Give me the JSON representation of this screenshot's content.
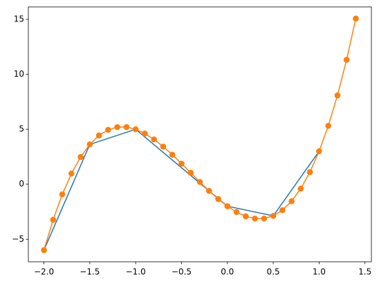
{
  "chart_data": {
    "type": "line",
    "series": [
      {
        "color": "#1f77b4",
        "markers": false,
        "x": [
          -2,
          -1.5,
          -1,
          0,
          0.5,
          1
        ],
        "values": [
          -6,
          3.625,
          5,
          -2,
          -2.875,
          3
        ]
      },
      {
        "color": "#ff7f0e",
        "markers": true,
        "x": [
          -2,
          -1.9,
          -1.8,
          -1.7,
          -1.6,
          -1.5,
          -1.4,
          -1.3,
          -1.2,
          -1.1,
          -1,
          -0.9,
          -0.8,
          -0.7,
          -0.6,
          -0.5,
          -0.4,
          -0.3,
          -0.2,
          -0.1,
          0,
          0.1,
          0.2,
          0.3,
          0.4,
          0.5,
          0.6,
          0.7,
          0.8,
          0.9,
          1,
          1.1,
          1.2,
          1.3,
          1.4
        ],
        "values": [
          -6,
          -3.235,
          -0.92,
          0.975,
          2.48,
          3.625,
          4.44,
          4.955,
          5.2,
          5.205,
          5,
          4.615,
          4.08,
          3.425,
          2.68,
          1.875,
          1.04,
          0.205,
          -0.6,
          -1.345,
          -2,
          -2.535,
          -2.92,
          -3.125,
          -3.12,
          -2.875,
          -2.36,
          -1.545,
          -0.4,
          1.105,
          3,
          5.315,
          8.08,
          11.325,
          15.08
        ]
      }
    ],
    "xlim": [
      -2.17,
      1.57
    ],
    "ylim": [
      -7.054,
      16.134
    ],
    "xticks": [
      {
        "value": -2,
        "label": "−2.0"
      },
      {
        "value": -1.5,
        "label": "−1.5"
      },
      {
        "value": -1,
        "label": "−1.0"
      },
      {
        "value": -0.5,
        "label": "−0.5"
      },
      {
        "value": 0,
        "label": "0.0"
      },
      {
        "value": 0.5,
        "label": "0.5"
      },
      {
        "value": 1,
        "label": "1.0"
      },
      {
        "value": 1.5,
        "label": "1.5"
      }
    ],
    "yticks": [
      {
        "value": -5,
        "label": "−5"
      },
      0,
      5,
      10,
      15
    ]
  }
}
